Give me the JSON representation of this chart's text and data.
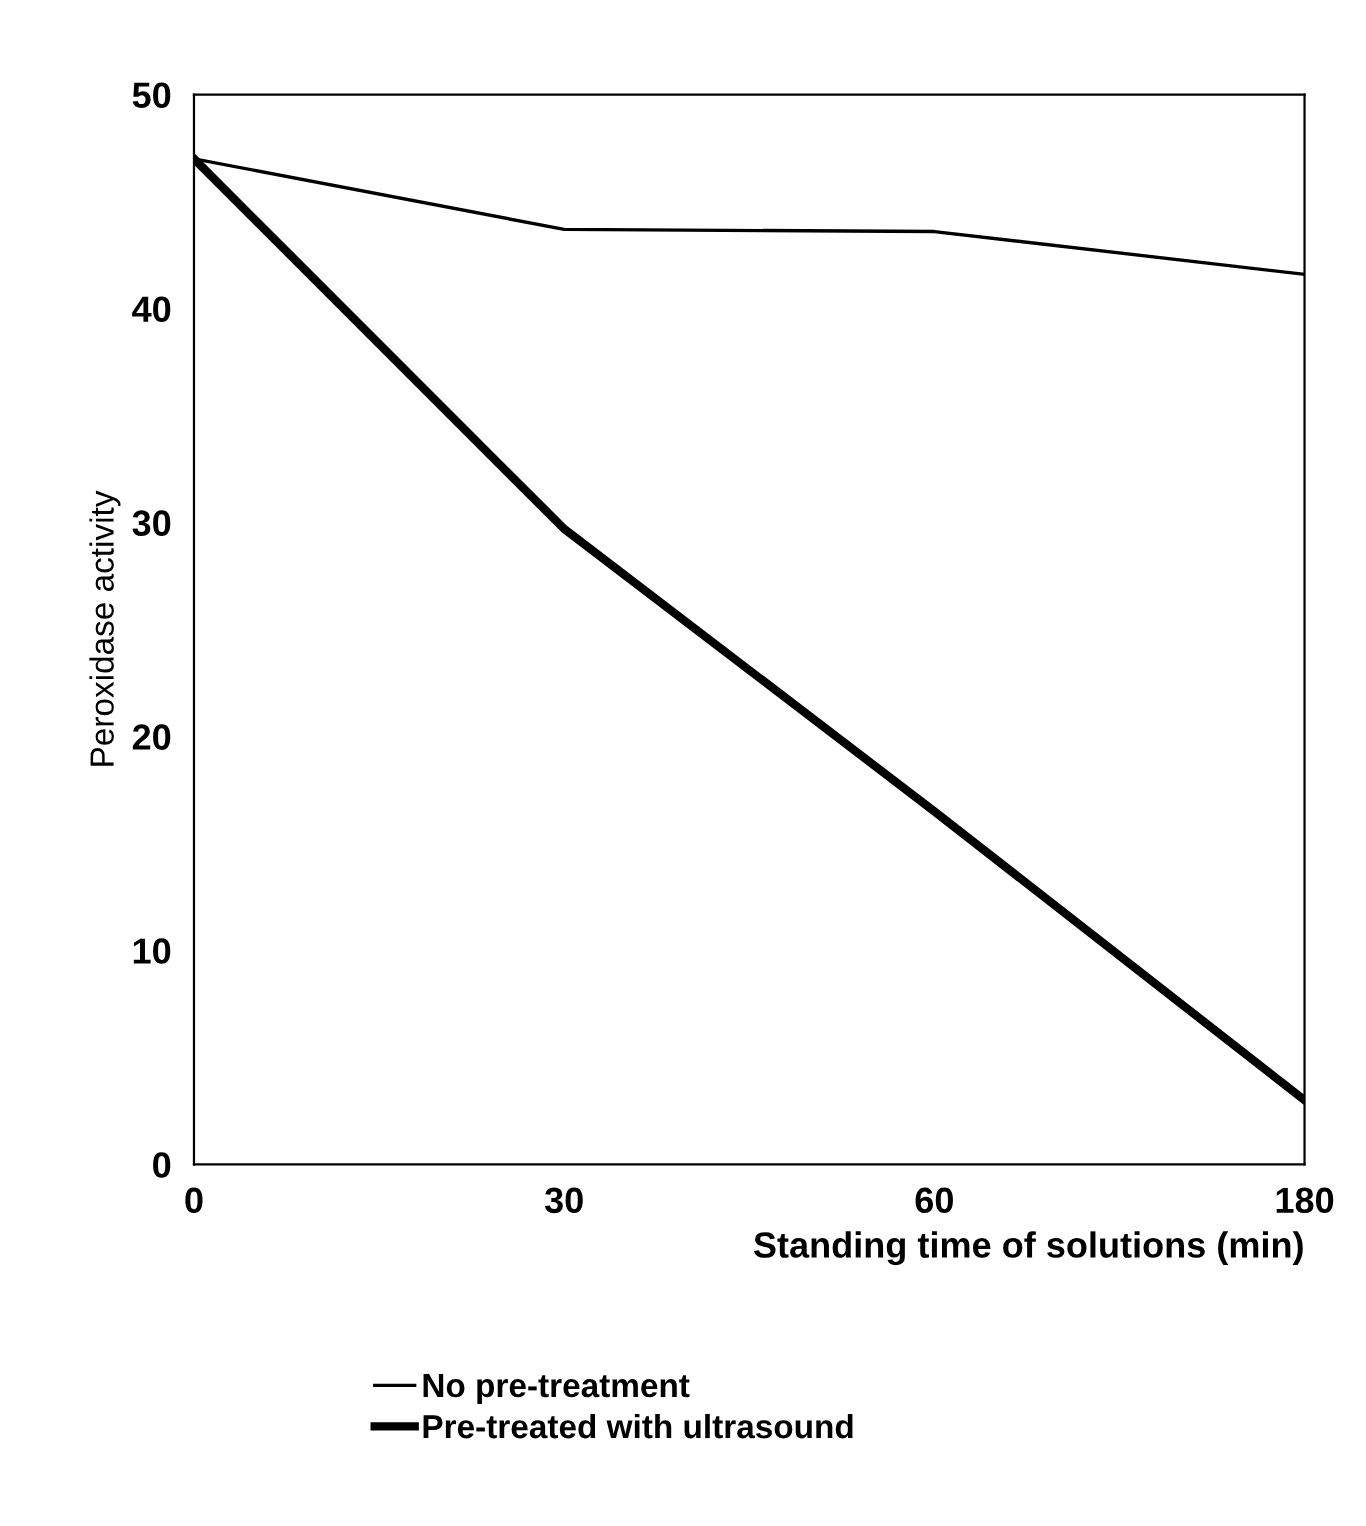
{
  "chart_data": {
    "type": "line",
    "xlabel": "Standing time of solutions (min)",
    "ylabel": "Peroxidase activity",
    "categories": [
      "0",
      "30",
      "60",
      "180"
    ],
    "series": [
      {
        "name": "No pre-treatment",
        "color": "#000000",
        "values": [
          47,
          43.7,
          43.6,
          41.6
        ]
      },
      {
        "name": "Pre-treated with ultrasound",
        "color": "#000000",
        "values": [
          47,
          29.7,
          16.5,
          3
        ]
      }
    ],
    "ylim": [
      0,
      50
    ],
    "yticks": [
      0,
      10,
      20,
      30,
      40,
      50
    ],
    "grid": false,
    "legend": "bottom",
    "marker": "none",
    "line_style": "solid"
  }
}
